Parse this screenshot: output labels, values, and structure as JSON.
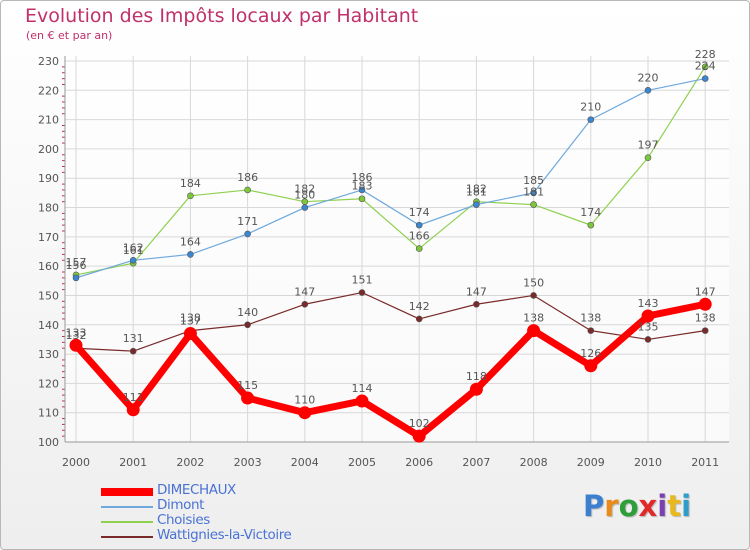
{
  "chart_data": {
    "type": "line",
    "title": "Evolution des Impôts locaux par Habitant",
    "subtitle": "(en € et par an)",
    "x": [
      "2000",
      "2001",
      "2002",
      "2003",
      "2004",
      "2005",
      "2006",
      "2007",
      "2008",
      "2009",
      "2010",
      "2011"
    ],
    "ylim": [
      100,
      230
    ],
    "yticks": [
      "100",
      "110",
      "120",
      "130",
      "140",
      "150",
      "160",
      "170",
      "180",
      "190",
      "200",
      "210",
      "220",
      "230"
    ],
    "grid": true,
    "legend_position": "bottom-left",
    "series": [
      {
        "name": "DIMECHAUX",
        "values": [
          133,
          111,
          137,
          115,
          110,
          114,
          102,
          118,
          138,
          126,
          143,
          147
        ],
        "color": "#ff0000"
      },
      {
        "name": "Dimont",
        "values": [
          156,
          162,
          164,
          171,
          180,
          186,
          174,
          181,
          185,
          210,
          220,
          224
        ],
        "color": "#6fa8dc"
      },
      {
        "name": "Choisies",
        "values": [
          157,
          161,
          184,
          186,
          182,
          183,
          166,
          182,
          181,
          174,
          197,
          228
        ],
        "color": "#8fd14f"
      },
      {
        "name": "Wattignies-la-Victoire",
        "values": [
          132,
          131,
          138,
          140,
          147,
          151,
          142,
          147,
          150,
          138,
          135,
          138
        ],
        "color": "#7a2a2a"
      }
    ]
  },
  "logo": {
    "letters": [
      "P",
      "r",
      "o",
      "x",
      "i",
      "t",
      "i"
    ],
    "colors": [
      "#3a7fd0",
      "#e88a1c",
      "#2e9e3a",
      "#e02a2a",
      "#7b3fb0",
      "#e8b81c",
      "#2e9ec8"
    ]
  }
}
